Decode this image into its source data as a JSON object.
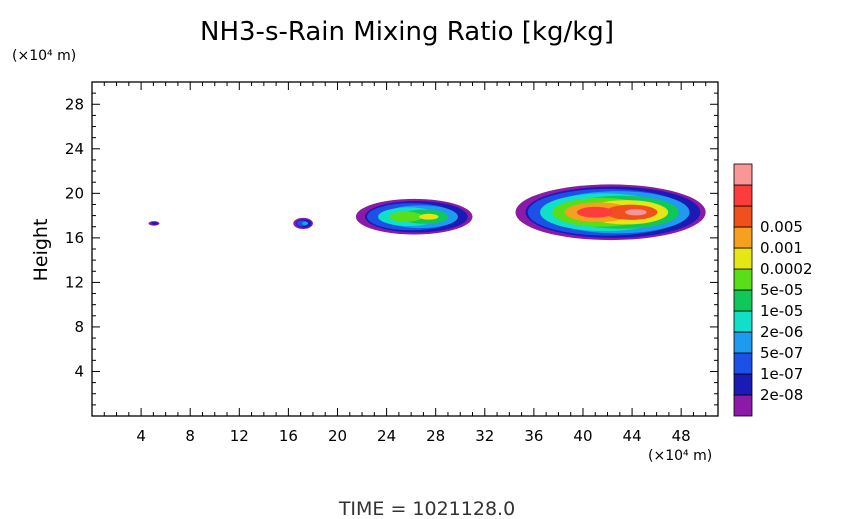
{
  "chart_data": {
    "type": "heatmap",
    "title": "NH3-s-Rain Mixing Ratio [kg/kg]",
    "xlabel": "",
    "ylabel": "Height",
    "x_unit": "(×10⁴ m)",
    "y_unit": "(×10⁴ m)",
    "x_range": [
      0,
      51
    ],
    "y_range": [
      0,
      30
    ],
    "x_ticks": [
      4,
      8,
      12,
      16,
      20,
      24,
      28,
      32,
      36,
      40,
      44,
      48
    ],
    "y_ticks": [
      4,
      8,
      12,
      16,
      20,
      24,
      28
    ],
    "footer": "TIME = 1021128.0",
    "colorbar": {
      "colors": [
        "#8b1aa8",
        "#1a1ab4",
        "#1c50e6",
        "#1e9bf0",
        "#11e0c8",
        "#10c85a",
        "#5ade1a",
        "#e6e614",
        "#f5a01e",
        "#f0501e",
        "#ff3c3c",
        "#fa9696"
      ],
      "labels": [
        "2e-08",
        "1e-07",
        "5e-07",
        "2e-06",
        "1e-05",
        "5e-05",
        "0.0002",
        "0.001",
        "0.005"
      ]
    },
    "regions": [
      {
        "name": "small cell A",
        "x": [
          4.6,
          5.5
        ],
        "y": [
          17.1,
          17.5
        ],
        "peak": "1e-07"
      },
      {
        "name": "small cell B",
        "x": [
          16.4,
          18.0
        ],
        "y": [
          16.8,
          17.8
        ],
        "peak": "2e-06"
      },
      {
        "name": "central cloud",
        "x": [
          21.5,
          31.0
        ],
        "y": [
          16.3,
          19.5
        ],
        "peak": "0.0002"
      },
      {
        "name": "eastern cloud",
        "x": [
          34.5,
          50.0
        ],
        "y": [
          15.8,
          20.8
        ],
        "peak": "0.005"
      }
    ]
  }
}
